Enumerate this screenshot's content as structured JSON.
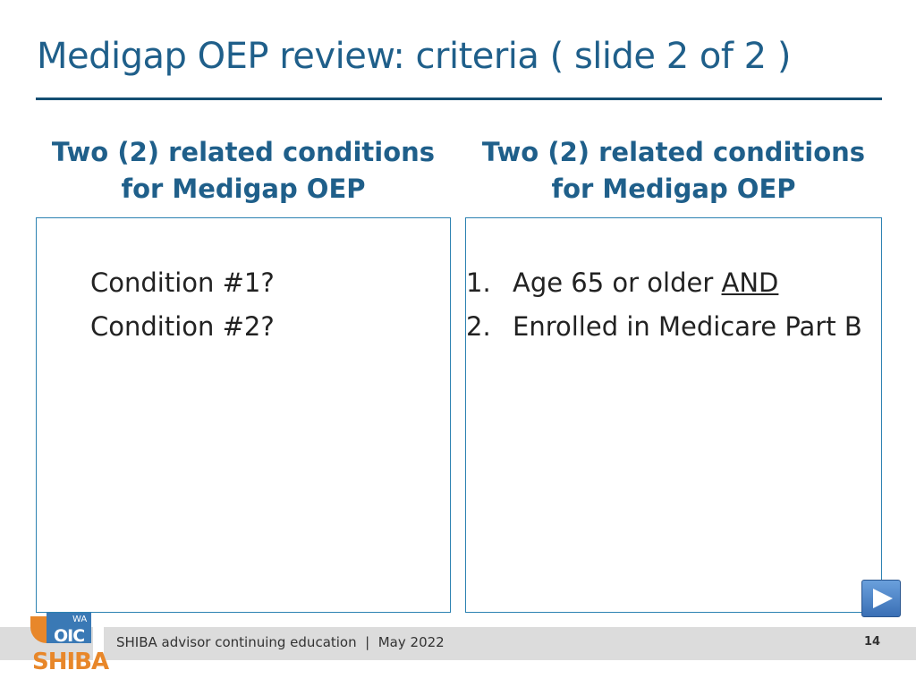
{
  "slide": {
    "title": "Medigap OEP review: criteria ( slide 2 of 2 )"
  },
  "left_column": {
    "heading_line1": "Two (2) related conditions",
    "heading_line2": "for Medigap OEP",
    "items": [
      "Condition #1?",
      "Condition #2?"
    ]
  },
  "right_column": {
    "heading_line1": "Two (2) related conditions",
    "heading_line2": "for Medigap OEP",
    "items": [
      {
        "number": "1.",
        "text": "Age 65 or older ",
        "emphasis": "AND"
      },
      {
        "number": "2.",
        "text": "Enrolled in Medicare Part B",
        "emphasis": ""
      }
    ]
  },
  "footer": {
    "text": "SHIBA advisor continuing education  |  May 2022",
    "page_number": "14"
  },
  "logo": {
    "wa": "WA",
    "oic": "OIC",
    "shiba": "SHIBA"
  },
  "colors": {
    "title": "#1f5f8a",
    "rule": "#144e72",
    "box_border": "#2d82b2",
    "logo_orange": "#e8872a",
    "logo_blue": "#3a79b5"
  },
  "icons": {
    "next_button": "play-triangle"
  }
}
